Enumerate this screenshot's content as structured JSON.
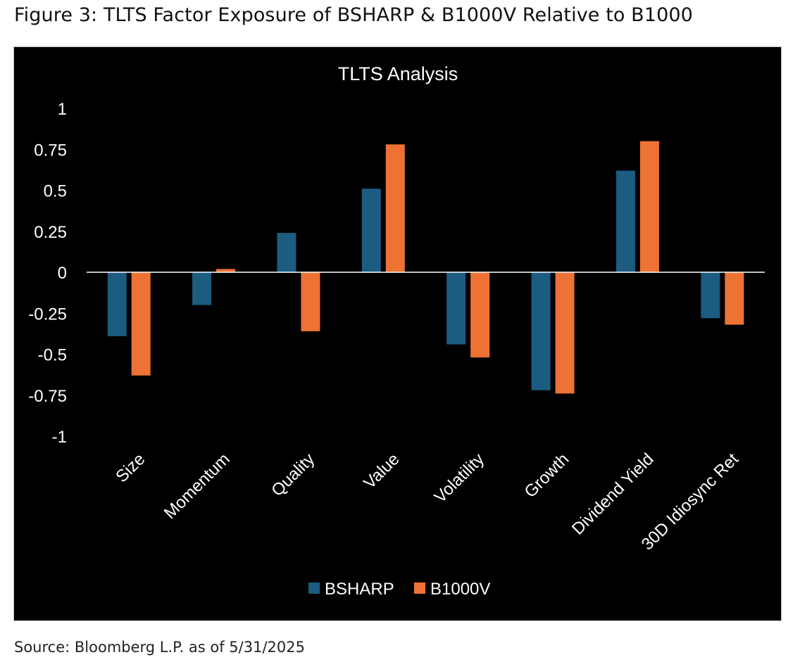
{
  "figure_title": "Figure 3: TLTS Factor Exposure of BSHARP & B1000V Relative to B1000",
  "source_note": "Source: Bloomberg L.P. as of 5/31/2025",
  "chart_data": {
    "type": "bar",
    "title": "TLTS Analysis",
    "categories": [
      "Size",
      "Momentum",
      "Quality",
      "Value",
      "Volatility",
      "Growth",
      "Dividend Yield",
      "30D Idiosync Ret"
    ],
    "series": [
      {
        "name": "BSHARP",
        "color": "#1b5c80",
        "values": [
          -0.39,
          -0.2,
          0.24,
          0.51,
          -0.44,
          -0.72,
          0.62,
          -0.28
        ]
      },
      {
        "name": "B1000V",
        "color": "#ed7233",
        "values": [
          -0.63,
          0.02,
          -0.36,
          0.78,
          -0.52,
          -0.74,
          0.8,
          -0.32
        ]
      }
    ],
    "yticks": [
      "1",
      "0.75",
      "0.5",
      "0.25",
      "0",
      "-0.25",
      "-0.5",
      "-0.75",
      "-1"
    ],
    "ylim": [
      -1,
      1
    ],
    "grid": false,
    "legend": "bottom",
    "background": "#000000",
    "text_color": "#ffffff"
  }
}
